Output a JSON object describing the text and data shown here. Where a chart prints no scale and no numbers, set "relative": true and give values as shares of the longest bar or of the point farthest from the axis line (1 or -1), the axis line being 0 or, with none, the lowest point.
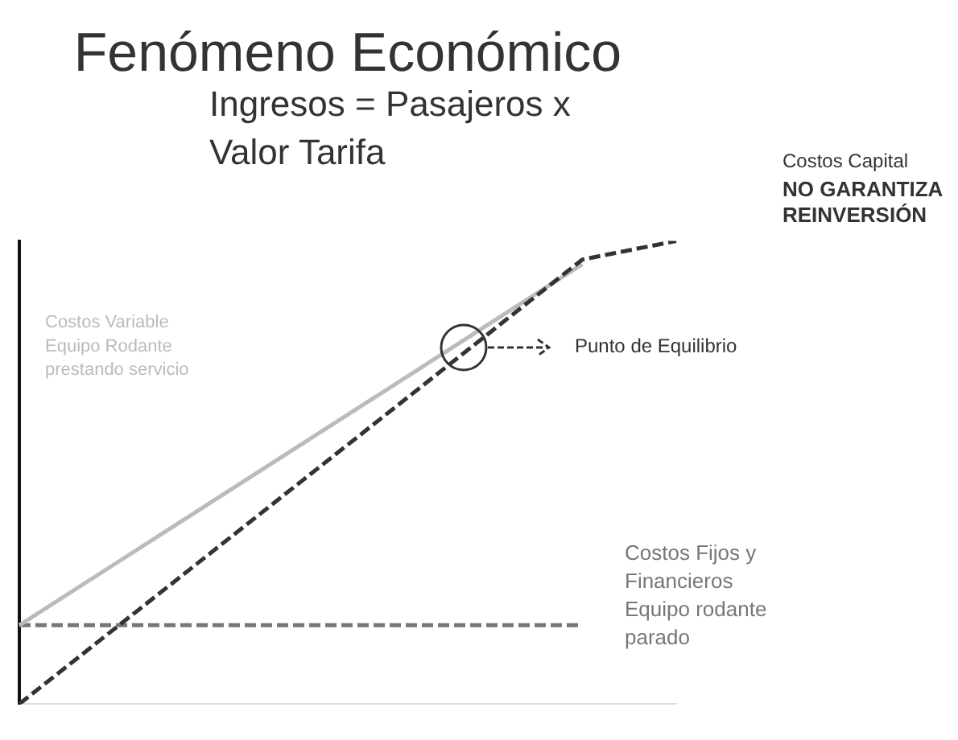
{
  "chart_data": {
    "type": "line",
    "title": "Fenómeno Económico",
    "relative": true,
    "legend": false,
    "grid": false,
    "marker": "none",
    "categories": [
      null,
      null,
      null,
      null,
      null,
      null,
      null,
      null
    ],
    "series": [
      {
        "name": "Ingresos = Pasajeros x Valor Tarifa",
        "color": "#333333",
        "line_style": "dashed",
        "values": [
          0,
          0.16,
          0.32,
          0.48,
          0.64,
          0.8,
          0.96,
          1.0
        ]
      },
      {
        "name": "Costos Variable Equipo Rodante prestando servicio",
        "color": "#bbbbbb",
        "line_style": "solid",
        "values": [
          0.17,
          0.3,
          0.43,
          0.56,
          0.69,
          0.82,
          0.95,
          null
        ]
      },
      {
        "name": "Costos Fijos y Financieros Equipo rodante parado",
        "color": "#777777",
        "line_style": "dashed",
        "values": [
          0.17,
          0.17,
          0.17,
          0.17,
          0.17,
          0.17,
          0.17,
          null
        ]
      }
    ],
    "annotations": [
      "Costos Capital",
      "NO GARANTIZA REINVERSIÓN",
      "Punto de Equilibrio"
    ]
  }
}
